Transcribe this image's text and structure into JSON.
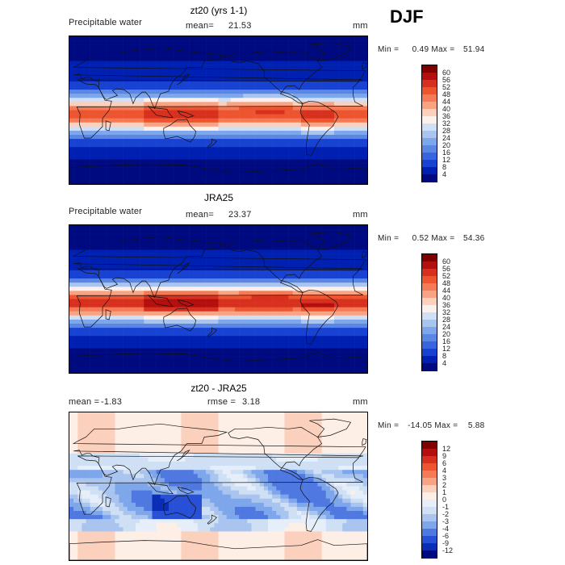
{
  "season": "DJF",
  "chart_data": [
    {
      "type": "heatmap",
      "title": "zt20 (yrs 1-1)",
      "field_label": "Precipitable water",
      "stat_label": "mean=",
      "stat_value": "21.53",
      "units": "mm",
      "min_label": "Min =",
      "min_value": "0.49",
      "max_label": "Max =",
      "max_value": "51.94",
      "colorbar": {
        "levels": [
          "60",
          "56",
          "52",
          "48",
          "44",
          "40",
          "36",
          "32",
          "28",
          "24",
          "20",
          "16",
          "12",
          "8",
          "4"
        ],
        "colors": [
          "#800000",
          "#b40f0f",
          "#d8301f",
          "#ec5530",
          "#f47b55",
          "#f8a484",
          "#fbd0bc",
          "#fbf0eb",
          "#cfe0f5",
          "#a9c4ef",
          "#7ea6ea",
          "#5a86e4",
          "#3864df",
          "#1843d2",
          "#0020b2",
          "#000a80"
        ]
      }
    },
    {
      "type": "heatmap",
      "title": "JRA25",
      "field_label": "Precipitable water",
      "stat_label": "mean=",
      "stat_value": "23.37",
      "units": "mm",
      "min_label": "Min =",
      "min_value": "0.52",
      "max_label": "Max =",
      "max_value": "54.36",
      "colorbar": {
        "levels": [
          "60",
          "56",
          "52",
          "48",
          "44",
          "40",
          "36",
          "32",
          "28",
          "24",
          "20",
          "16",
          "12",
          "8",
          "4"
        ],
        "colors": [
          "#800000",
          "#b40f0f",
          "#d8301f",
          "#ec5530",
          "#f47b55",
          "#f8a484",
          "#fbd0bc",
          "#fbf0eb",
          "#cfe0f5",
          "#a9c4ef",
          "#7ea6ea",
          "#5a86e4",
          "#3864df",
          "#1843d2",
          "#0020b2",
          "#000a80"
        ]
      }
    },
    {
      "type": "heatmap",
      "title": "zt20 - JRA25",
      "stat_label": "mean =",
      "stat_value": "-1.83",
      "rmse_label": "rmse =",
      "rmse_value": "3.18",
      "units": "mm",
      "min_label": "Min =",
      "min_value": "-14.05",
      "max_label": "Max =",
      "max_value": "5.88",
      "colorbar": {
        "levels": [
          "12",
          "9",
          "6",
          "4",
          "3",
          "2",
          "1",
          "0",
          "-1",
          "-2",
          "-3",
          "-4",
          "-6",
          "-9",
          "-12"
        ],
        "colors": [
          "#800000",
          "#b40f0f",
          "#d8301f",
          "#ec5530",
          "#f47b55",
          "#f8a484",
          "#fbd0bc",
          "#fdeee6",
          "#e6eefa",
          "#cfe0f5",
          "#a9c4ef",
          "#7ea6ea",
          "#4f78e0",
          "#2850d6",
          "#0a2db8",
          "#000a80"
        ]
      }
    }
  ]
}
